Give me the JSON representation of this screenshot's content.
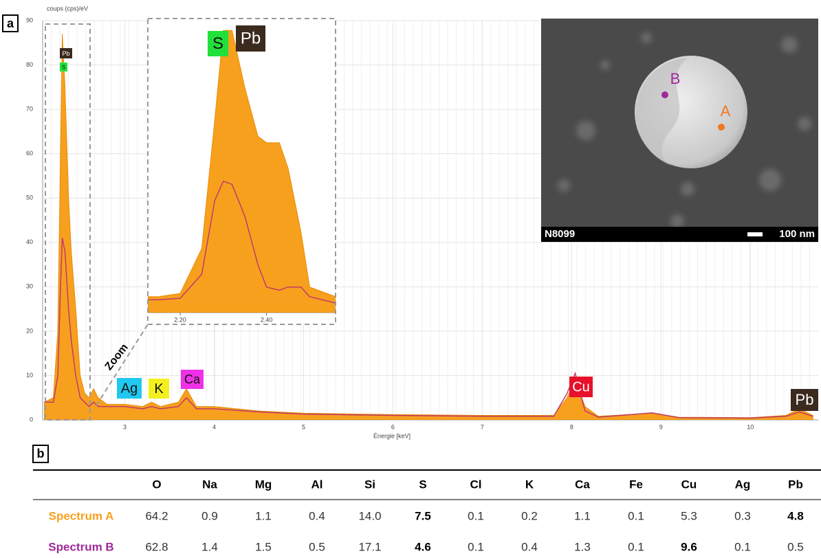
{
  "chart_data": [
    {
      "type": "area",
      "y_label": "coups (cps)/eV",
      "x_label": "Énergie [keV]",
      "x": [
        2.1,
        2.2,
        2.25,
        2.28,
        2.3,
        2.33,
        2.37,
        2.4,
        2.45,
        2.5,
        2.55,
        2.6,
        2.65,
        2.7,
        2.8,
        3.0,
        3.2,
        3.3,
        3.4,
        3.6,
        3.69,
        3.8,
        4.0,
        4.5,
        5.0,
        6.0,
        7.0,
        7.8,
        7.95,
        8.04,
        8.15,
        8.3,
        8.9,
        9.2,
        10.0,
        10.4,
        10.55,
        10.7
      ],
      "series": [
        {
          "name": "Spectrum A",
          "kind": "area",
          "color": "#f7a01e",
          "values": [
            4,
            5,
            20,
            60,
            87,
            75,
            50,
            38,
            25,
            10,
            6,
            5,
            7,
            5,
            3.5,
            3.5,
            3,
            4,
            3,
            4,
            7,
            3,
            3,
            2,
            1.5,
            1.2,
            1,
            1,
            5,
            9,
            3,
            0.8,
            1.5,
            0.6,
            0.5,
            1,
            2.5,
            1
          ]
        },
        {
          "name": "Spectrum B",
          "kind": "line",
          "color": "#c03a6a",
          "values": [
            4,
            4,
            10,
            30,
            41,
            38,
            25,
            18,
            10,
            5,
            4,
            3,
            4,
            3,
            3,
            3,
            2.5,
            3,
            2.5,
            3,
            5,
            2.5,
            2.5,
            1.8,
            1.3,
            1,
            0.8,
            0.8,
            6,
            10.5,
            2,
            0.6,
            1.6,
            0.5,
            0.4,
            0.8,
            1.8,
            0.8
          ]
        }
      ],
      "xlim": [
        2.08,
        10.76
      ],
      "ylim": [
        0,
        90
      ],
      "xticks": [
        3,
        4,
        5,
        6,
        7,
        8,
        9,
        10
      ],
      "yticks": [
        0,
        10,
        20,
        30,
        40,
        50,
        60,
        70,
        80,
        90
      ],
      "grid": true,
      "annotations": [
        {
          "text": "Pb",
          "color": "#3b2a1e"
        },
        {
          "text": "S",
          "color": "#22e03a"
        },
        {
          "text": "Ag",
          "color": "#20c8f0"
        },
        {
          "text": "K",
          "color": "#f4f020"
        },
        {
          "text": "Ca",
          "color": "#f030e8"
        },
        {
          "text": "Cu",
          "color": "#e8102a"
        },
        {
          "text": "Pb",
          "color": "#3b2a1e"
        }
      ]
    },
    {
      "type": "area",
      "x": [
        2.125,
        2.15,
        2.2,
        2.25,
        2.28,
        2.3,
        2.32,
        2.35,
        2.38,
        2.4,
        2.43,
        2.45,
        2.48,
        2.5,
        2.56
      ],
      "series": [
        {
          "name": "Spectrum A",
          "kind": "area",
          "color": "#f7a01e",
          "values": [
            5,
            5,
            6,
            20,
            60,
            88,
            88,
            70,
            55,
            53,
            53,
            45,
            25,
            8,
            5
          ]
        },
        {
          "name": "Spectrum B",
          "kind": "line",
          "color": "#c03a6a",
          "values": [
            4,
            4,
            4.5,
            12,
            35,
            41,
            40,
            30,
            15,
            8,
            7,
            8,
            8,
            5,
            3
          ]
        }
      ],
      "xlim": [
        2.125,
        2.56
      ],
      "ylim": [
        0,
        90
      ],
      "xticks": [
        {
          "value": 2.2,
          "label": "2.20"
        },
        {
          "value": 2.4,
          "label": "2.40"
        }
      ],
      "annotations": [
        {
          "text": "S",
          "color": "#22e03a"
        },
        {
          "text": "Pb",
          "color": "#3b2a1e"
        }
      ]
    }
  ],
  "figure": {
    "panel_a": "a",
    "panel_b": "b",
    "zoom_label": "Zoom",
    "image": {
      "point_b": "B",
      "point_a": "A",
      "sample": "N8099",
      "scale": "100 nm"
    }
  },
  "table": {
    "header": [
      "O",
      "Na",
      "Mg",
      "Al",
      "Si",
      "S",
      "Cl",
      "K",
      "Ca",
      "Fe",
      "Cu",
      "Ag",
      "Pb"
    ],
    "rows": [
      {
        "name": "Spectrum A",
        "color": "#f7a01e",
        "bold": [
          5,
          12
        ],
        "cells": [
          "64.2",
          "0.9",
          "1.1",
          "0.4",
          "14.0",
          "7.5",
          "0.1",
          "0.2",
          "1.1",
          "0.1",
          "5.3",
          "0.3",
          "4.8"
        ]
      },
      {
        "name": "Spectrum B",
        "color": "#a0289a",
        "bold": [
          5,
          10
        ],
        "cells": [
          "62.8",
          "1.4",
          "1.5",
          "0.5",
          "17.1",
          "4.6",
          "0.1",
          "0.4",
          "1.3",
          "0.1",
          "9.6",
          "0.1",
          "0.5"
        ]
      }
    ]
  }
}
